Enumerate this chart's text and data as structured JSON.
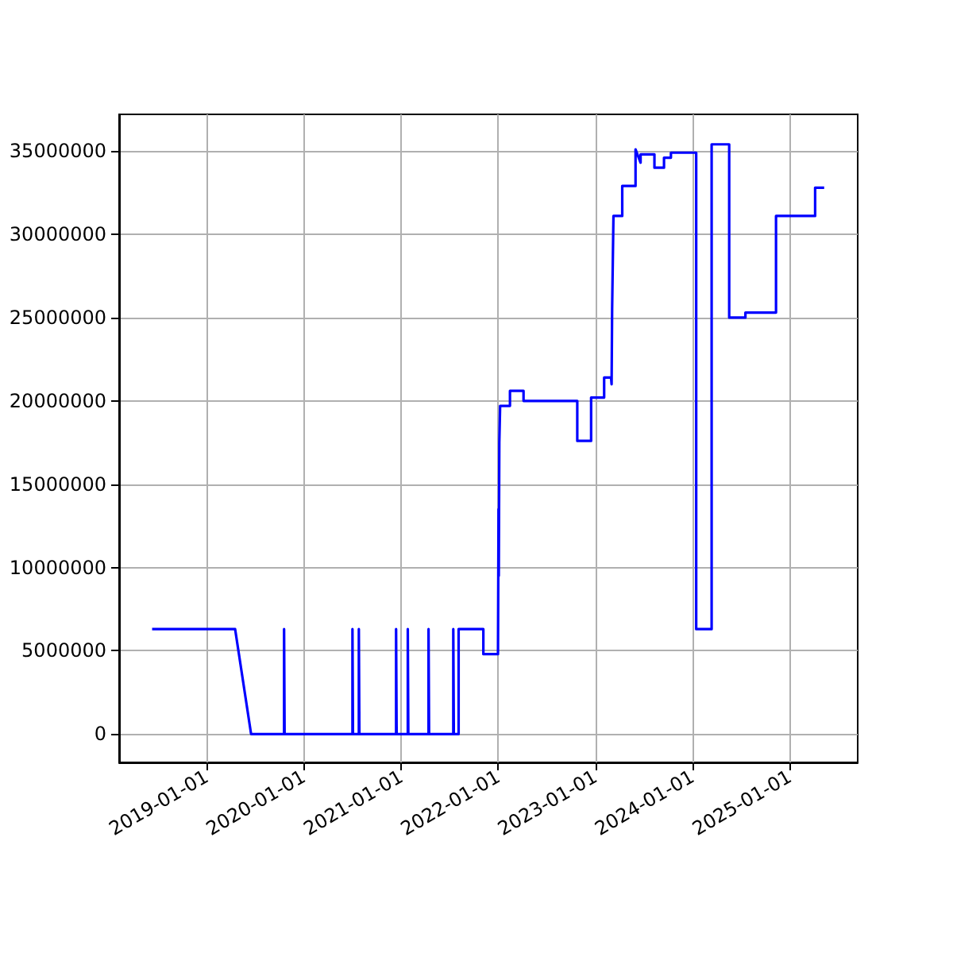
{
  "chart_data": {
    "type": "line",
    "color": "#0000ff",
    "grid": true,
    "line_style": "solid",
    "xlim": [
      "2018-02-06",
      "2025-09-13"
    ],
    "xticks": [
      "2019-01-01",
      "2020-01-01",
      "2021-01-01",
      "2022-01-01",
      "2023-01-01",
      "2024-01-01",
      "2025-01-01"
    ],
    "ylim": [
      -1700000,
      37200000
    ],
    "yticks": [
      0,
      5000000,
      10000000,
      15000000,
      20000000,
      25000000,
      30000000,
      35000000
    ],
    "x": [
      "2018-06-10",
      "2019-04-18",
      "2019-06-17",
      "2019-10-19",
      "2019-10-19",
      "2019-10-21",
      "2019-10-21",
      "2020-07-02",
      "2020-07-02",
      "2020-07-04",
      "2020-07-04",
      "2020-07-26",
      "2020-07-26",
      "2020-07-28",
      "2020-07-28",
      "2020-12-13",
      "2020-12-13",
      "2020-12-15",
      "2020-12-15",
      "2021-01-26",
      "2021-01-26",
      "2021-01-28",
      "2021-01-28",
      "2021-04-14",
      "2021-04-14",
      "2021-04-16",
      "2021-04-16",
      "2021-07-16",
      "2021-07-16",
      "2021-07-18",
      "2021-07-18",
      "2021-08-05",
      "2021-08-05",
      "2021-11-06",
      "2021-11-06",
      "2021-12-31",
      "2022-01-02",
      "2022-01-03",
      "2022-01-05",
      "2022-01-08",
      "2022-02-14",
      "2022-02-14",
      "2022-04-06",
      "2022-04-06",
      "2022-10-25",
      "2022-10-25",
      "2022-12-16",
      "2022-12-16",
      "2023-02-03",
      "2023-02-03",
      "2023-03-01",
      "2023-03-03",
      "2023-03-05",
      "2023-03-10",
      "2023-04-12",
      "2023-04-12",
      "2023-06-01",
      "2023-06-01",
      "2023-06-20",
      "2023-06-20",
      "2023-08-11",
      "2023-08-11",
      "2023-09-16",
      "2023-09-16",
      "2023-10-12",
      "2023-10-12",
      "2024-01-15",
      "2024-01-15",
      "2024-03-13",
      "2024-03-13",
      "2024-05-18",
      "2024-05-18",
      "2024-07-18",
      "2024-07-18",
      "2024-11-10",
      "2024-11-10",
      "2025-04-06",
      "2025-04-06",
      "2025-05-10"
    ],
    "values": [
      6300000,
      6300000,
      0,
      0,
      6300000,
      6300000,
      0,
      0,
      6300000,
      6300000,
      0,
      0,
      6300000,
      6300000,
      0,
      0,
      6300000,
      6300000,
      0,
      0,
      6300000,
      6300000,
      0,
      0,
      6300000,
      6300000,
      0,
      0,
      6300000,
      6300000,
      0,
      0,
      6300000,
      6300000,
      4800000,
      4800000,
      13500000,
      9500000,
      17500000,
      19700000,
      19700000,
      20600000,
      20600000,
      20000000,
      20000000,
      17600000,
      17600000,
      20200000,
      20200000,
      21400000,
      21400000,
      21000000,
      25500000,
      31100000,
      31100000,
      32900000,
      32900000,
      35100000,
      34300000,
      34800000,
      34800000,
      34000000,
      34000000,
      34600000,
      34600000,
      34900000,
      34900000,
      6300000,
      6300000,
      35400000,
      35400000,
      25000000,
      25000000,
      25300000,
      25300000,
      31100000,
      31100000,
      32800000,
      32800000
    ]
  }
}
